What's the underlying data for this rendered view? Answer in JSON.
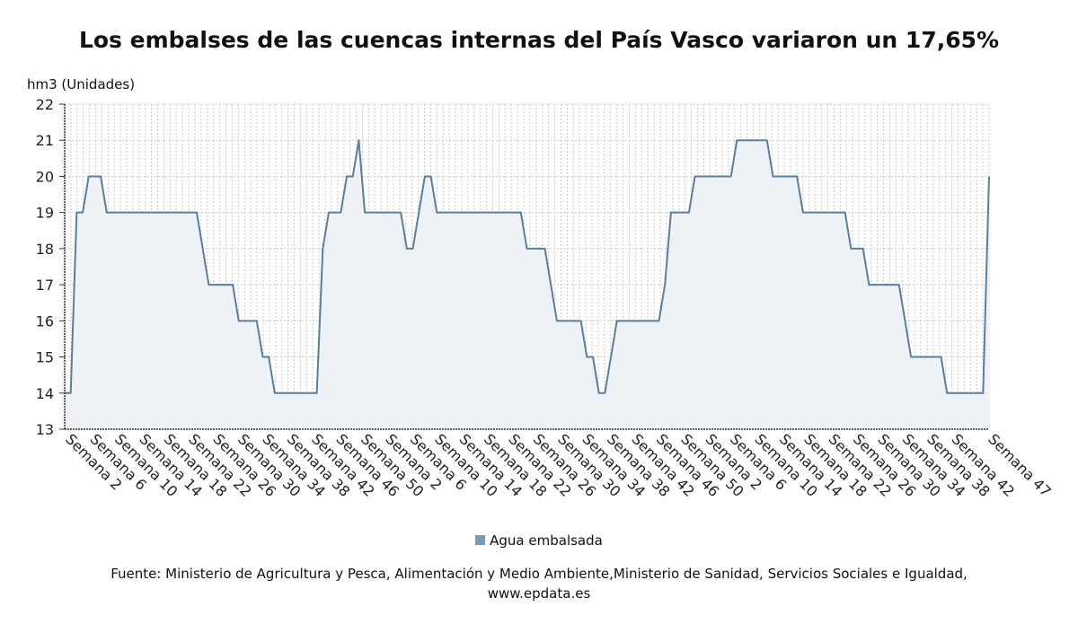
{
  "title": "Los embalses de las cuencas internas del País Vasco variaron un 17,65%",
  "y_unit": "hm3 (Unidades)",
  "legend_label": "Agua embalsada",
  "source_line1": "Fuente: Ministerio de Agricultura y Pesca, Alimentación y Medio Ambiente,Ministerio de Sanidad, Servicios Sociales e Igualdad,",
  "source_line2": "www.epdata.es",
  "colors": {
    "line": "#5b7e9c",
    "fill": "#eef1f5",
    "grid": "#c8c8c8",
    "legend": "#7a9ab8"
  },
  "chart_data": {
    "type": "area",
    "ylabel": "hm3 (Unidades)",
    "ylim": [
      13,
      22
    ],
    "yticks": [
      13,
      14,
      15,
      16,
      17,
      18,
      19,
      20,
      21,
      22
    ],
    "grid": true,
    "legend_position": "bottom",
    "xtick_labels": [
      "Semana 2",
      "Semana 6",
      "Semana 10",
      "Semana 14",
      "Semana 18",
      "Semana 22",
      "Semana 26",
      "Semana 30",
      "Semana 34",
      "Semana 38",
      "Semana 42",
      "Semana 46",
      "Semana 50",
      "Semana 2",
      "Semana 6",
      "Semana 10",
      "Semana 14",
      "Semana 18",
      "Semana 22",
      "Semana 26",
      "Semana 30",
      "Semana 34",
      "Semana 38",
      "Semana 42",
      "Semana 46",
      "Semana 50",
      "Semana 2",
      "Semana 6",
      "Semana 10",
      "Semana 14",
      "Semana 18",
      "Semana 22",
      "Semana 26",
      "Semana 30",
      "Semana 34",
      "Semana 38",
      "Semana 42",
      "Semana 47"
    ],
    "series": [
      {
        "name": "Agua embalsada",
        "values": [
          14,
          14,
          19,
          19,
          20,
          20,
          20,
          19,
          19,
          19,
          19,
          19,
          19,
          19,
          19,
          19,
          19,
          19,
          19,
          19,
          19,
          19,
          19,
          18,
          17,
          17,
          17,
          17,
          17,
          16,
          16,
          16,
          16,
          15,
          15,
          14,
          14,
          14,
          14,
          14,
          14,
          14,
          14,
          18,
          19,
          19,
          19,
          20,
          20,
          21,
          19,
          19,
          19,
          19,
          19,
          19,
          19,
          18,
          18,
          19,
          20,
          20,
          19,
          19,
          19,
          19,
          19,
          19,
          19,
          19,
          19,
          19,
          19,
          19,
          19,
          19,
          19,
          18,
          18,
          18,
          18,
          17,
          16,
          16,
          16,
          16,
          16,
          15,
          15,
          14,
          14,
          15,
          16,
          16,
          16,
          16,
          16,
          16,
          16,
          16,
          17,
          19,
          19,
          19,
          19,
          20,
          20,
          20,
          20,
          20,
          20,
          20,
          21,
          21,
          21,
          21,
          21,
          21,
          20,
          20,
          20,
          20,
          20,
          19,
          19,
          19,
          19,
          19,
          19,
          19,
          19,
          18,
          18,
          18,
          17,
          17,
          17,
          17,
          17,
          17,
          16,
          15,
          15,
          15,
          15,
          15,
          15,
          14,
          14,
          14,
          14,
          14,
          14,
          14,
          20
        ]
      }
    ]
  }
}
